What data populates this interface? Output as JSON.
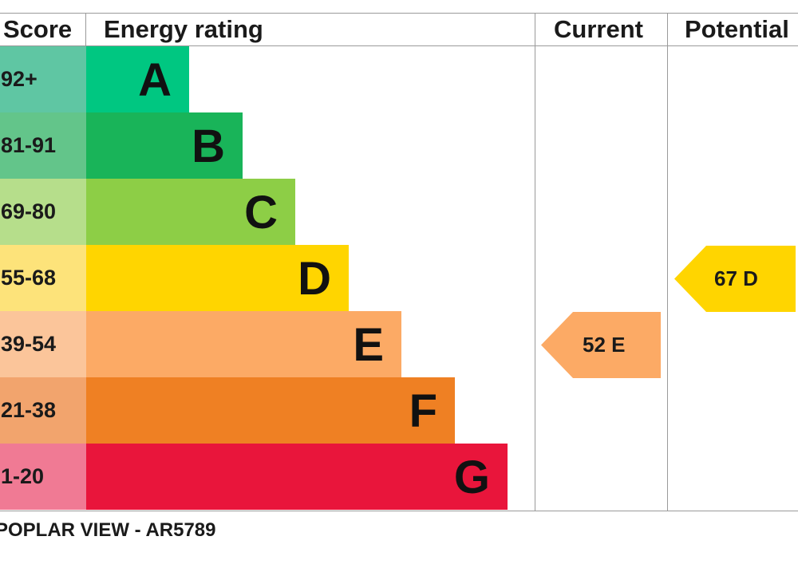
{
  "headers": {
    "score": "Score",
    "energy_rating": "Energy rating",
    "current": "Current",
    "potential": "Potential"
  },
  "chart_data": {
    "type": "bar",
    "categories": [
      "A",
      "B",
      "C",
      "D",
      "E",
      "F",
      "G"
    ],
    "score_ranges": [
      "92+",
      "81-91",
      "69-80",
      "55-68",
      "39-54",
      "21-38",
      "1-20"
    ],
    "relative_length": [
      1,
      2,
      3,
      4,
      5,
      6,
      7
    ],
    "band_colors": [
      "#00c781",
      "#19b459",
      "#8dce46",
      "#ffd500",
      "#fcaa65",
      "#ef8023",
      "#e9153b"
    ],
    "score_colors": [
      "#5fc6a3",
      "#63c58a",
      "#b6de8b",
      "#fde37a",
      "#fbc59a",
      "#f2a46d",
      "#f07a94"
    ],
    "current": {
      "label": "52 E",
      "score": 52,
      "band": "E",
      "color": "#fcaa65"
    },
    "potential": {
      "label": "67 D",
      "score": 67,
      "band": "D",
      "color": "#ffd500"
    }
  },
  "footer": "POPLAR VIEW - AR5789"
}
